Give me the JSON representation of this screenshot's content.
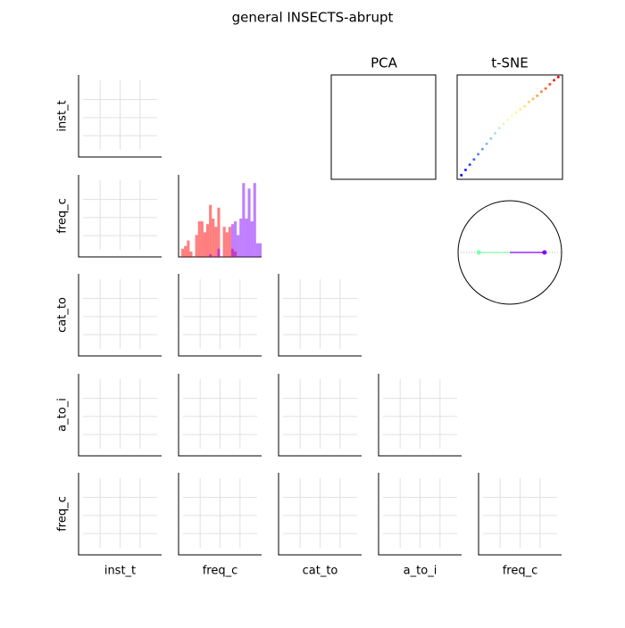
{
  "title": "general INSECTS-abrupt",
  "row_labels": [
    "inst_t",
    "freq_c",
    "cat_to",
    "a_to_i",
    "freq_c"
  ],
  "col_labels": [
    "inst_t",
    "freq_c",
    "cat_to",
    "a_to_i",
    "freq_c"
  ],
  "panel_titles": {
    "pca": "PCA",
    "tsne": "t-SNE"
  },
  "chart_data": [
    {
      "type": "histogram",
      "bins": [
        0,
        1,
        2,
        3,
        4,
        5,
        6,
        7,
        8,
        9,
        10,
        11,
        12,
        13,
        14,
        15,
        16,
        17,
        18,
        19,
        20,
        21,
        22,
        23,
        24,
        25,
        26,
        27,
        28,
        29,
        30
      ],
      "xlim": [
        0,
        30
      ],
      "ylim": [
        0,
        30
      ],
      "series": [
        {
          "color": "#ff0000",
          "values": [
            0,
            3,
            4,
            6,
            2,
            0,
            8,
            13,
            13,
            9,
            12,
            19,
            14,
            11,
            18,
            0,
            11,
            9,
            11,
            3,
            2,
            0,
            0,
            0,
            0,
            0,
            0,
            0,
            0,
            0
          ]
        },
        {
          "color": "#8000ff",
          "values": [
            0,
            0,
            0,
            0,
            0,
            0,
            0,
            0,
            0,
            0,
            0,
            1,
            0,
            0,
            3,
            0,
            0,
            0,
            0,
            12,
            13,
            8,
            14,
            27,
            14,
            25,
            13,
            27,
            5,
            5
          ]
        }
      ]
    },
    {
      "type": "scatter",
      "colormap": "rainbow",
      "xlim": [
        0,
        100
      ],
      "ylim": [
        0,
        100
      ],
      "x": [
        4,
        8,
        12,
        16,
        20,
        24,
        28,
        32,
        36,
        40,
        44,
        48,
        52,
        56,
        60,
        64,
        68,
        72,
        76,
        80,
        84,
        88,
        92,
        96
      ],
      "y": [
        4,
        9,
        14,
        19,
        24,
        29,
        34,
        39,
        44,
        49,
        53,
        57,
        61,
        64,
        67,
        70,
        74,
        77,
        80,
        84,
        87,
        91,
        95,
        98
      ]
    },
    {
      "type": "vectors",
      "xlim": [
        -1,
        1
      ],
      "ylim": [
        -1,
        1
      ],
      "series": [
        {
          "color": "#7fffaa",
          "x": -0.6,
          "y": 0
        },
        {
          "color": "#8000ff",
          "x": 0.67,
          "y": 0
        }
      ]
    }
  ]
}
